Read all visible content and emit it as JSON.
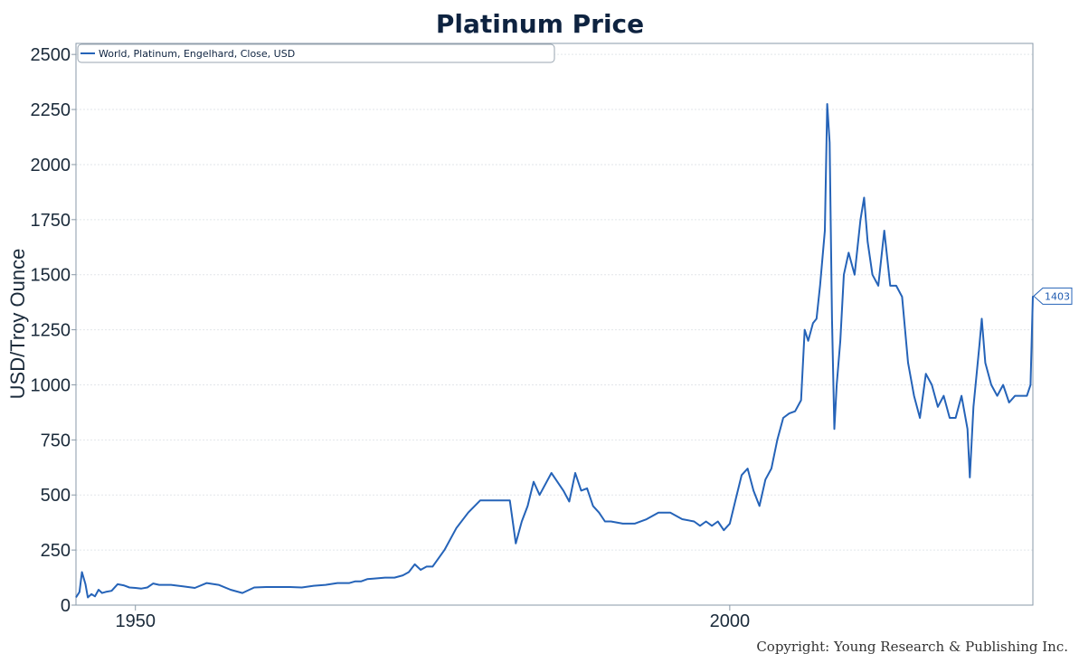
{
  "chart_data": {
    "type": "line",
    "title": "Platinum Price",
    "ylabel": "USD/Troy Ounce",
    "xlabel": "",
    "ylim": [
      0,
      2550
    ],
    "xlim": [
      1945,
      2025.5
    ],
    "y_ticks": [
      0,
      250,
      500,
      750,
      1000,
      1250,
      1500,
      1750,
      2000,
      2250,
      2500
    ],
    "x_ticks": [
      {
        "value": 1950,
        "label": "1950"
      },
      {
        "value": 2000,
        "label": "2000"
      }
    ],
    "grid": true,
    "legend_position": "top-left",
    "series": [
      {
        "name": "World, Platinum, Engelhard, Close, USD",
        "color": "#2563b8",
        "x": [
          1945.0,
          1945.3,
          1945.5,
          1945.8,
          1946.0,
          1946.3,
          1946.6,
          1946.9,
          1947.2,
          1947.5,
          1948.0,
          1948.5,
          1949.0,
          1949.5,
          1950.0,
          1950.5,
          1951.0,
          1951.5,
          1952.0,
          1953.0,
          1954.0,
          1955.0,
          1956.0,
          1957.0,
          1958.0,
          1959.0,
          1960.0,
          1961.0,
          1962.0,
          1963.0,
          1964.0,
          1965.0,
          1966.0,
          1967.0,
          1968.0,
          1968.5,
          1969.0,
          1969.5,
          1970.0,
          1971.0,
          1971.8,
          1972.5,
          1973.0,
          1973.5,
          1974.0,
          1974.5,
          1975.0,
          1976.0,
          1977.0,
          1978.0,
          1979.0,
          1980.0,
          1980.5,
          1981.0,
          1981.5,
          1982.0,
          1982.5,
          1983.0,
          1983.5,
          1984.0,
          1985.0,
          1986.0,
          1986.5,
          1987.0,
          1987.5,
          1988.0,
          1988.5,
          1989.0,
          1989.5,
          1990.0,
          1991.0,
          1992.0,
          1993.0,
          1994.0,
          1995.0,
          1996.0,
          1997.0,
          1997.5,
          1998.0,
          1998.5,
          1999.0,
          1999.5,
          2000.0,
          2000.5,
          2001.0,
          2001.5,
          2002.0,
          2002.5,
          2003.0,
          2003.5,
          2004.0,
          2004.5,
          2005.0,
          2005.5,
          2006.0,
          2006.3,
          2006.6,
          2007.0,
          2007.3,
          2007.6,
          2008.0,
          2008.2,
          2008.4,
          2008.6,
          2008.8,
          2009.0,
          2009.3,
          2009.6,
          2010.0,
          2010.5,
          2011.0,
          2011.3,
          2011.6,
          2012.0,
          2012.5,
          2013.0,
          2013.5,
          2014.0,
          2014.5,
          2015.0,
          2015.5,
          2016.0,
          2016.5,
          2017.0,
          2017.5,
          2018.0,
          2018.5,
          2019.0,
          2019.5,
          2020.0,
          2020.2,
          2020.5,
          2021.0,
          2021.2,
          2021.5,
          2022.0,
          2022.5,
          2023.0,
          2023.5,
          2024.0,
          2024.5,
          2025.0,
          2025.3,
          2025.5
        ],
        "values": [
          35,
          60,
          150,
          95,
          35,
          50,
          40,
          70,
          55,
          60,
          65,
          95,
          90,
          80,
          78,
          75,
          80,
          98,
          92,
          92,
          85,
          78,
          100,
          92,
          70,
          55,
          80,
          82,
          82,
          82,
          80,
          88,
          92,
          100,
          100,
          108,
          108,
          118,
          120,
          125,
          125,
          135,
          150,
          185,
          160,
          175,
          175,
          250,
          350,
          420,
          475,
          475,
          475,
          475,
          475,
          280,
          380,
          450,
          560,
          500,
          600,
          520,
          470,
          600,
          520,
          530,
          450,
          420,
          380,
          380,
          370,
          370,
          390,
          420,
          420,
          390,
          380,
          360,
          380,
          360,
          380,
          340,
          370,
          480,
          590,
          620,
          520,
          450,
          570,
          620,
          750,
          850,
          870,
          880,
          930,
          1250,
          1200,
          1280,
          1300,
          1450,
          1700,
          2275,
          2100,
          1300,
          800,
          1000,
          1200,
          1500,
          1600,
          1500,
          1750,
          1850,
          1650,
          1500,
          1450,
          1700,
          1450,
          1450,
          1400,
          1100,
          950,
          850,
          1050,
          1000,
          900,
          950,
          850,
          850,
          950,
          800,
          580,
          900,
          1180,
          1300,
          1100,
          1000,
          950,
          1000,
          920,
          950,
          950,
          950,
          1000,
          1403
        ]
      }
    ],
    "last_value_label": "1403",
    "annotation": "Copyright: Young Research & Publishing Inc."
  }
}
